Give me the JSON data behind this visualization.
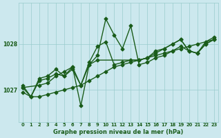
{
  "title": "Graphe pression niveau de la mer (hPa)",
  "bg_color": "#cce8ee",
  "grid_color": "#99cccc",
  "line_color": "#1a5c1a",
  "text_color": "#1a5c1a",
  "xlim": [
    -0.5,
    23.5
  ],
  "ylim": [
    1026.3,
    1028.9
  ],
  "yticks": [
    1027,
    1028
  ],
  "xticks": [
    0,
    1,
    2,
    3,
    4,
    5,
    6,
    7,
    8,
    9,
    10,
    11,
    12,
    13,
    14,
    15,
    16,
    17,
    18,
    19,
    20,
    21,
    22,
    23
  ],
  "series": [
    {
      "x": [
        0,
        1,
        2,
        3,
        4,
        5,
        6,
        7,
        8,
        9,
        10,
        11,
        12,
        13,
        14,
        15,
        16,
        17,
        18,
        19,
        20,
        21,
        22,
        23
      ],
      "y": [
        1027.1,
        1026.85,
        1027.25,
        1027.3,
        1027.45,
        1027.3,
        1027.5,
        1026.65,
        1027.55,
        1027.75,
        1028.55,
        1028.2,
        1027.9,
        1028.4,
        1027.55,
        1027.6,
        1027.7,
        1027.75,
        1027.85,
        1027.95,
        1027.85,
        1027.8,
        1028.05,
        1028.15
      ]
    },
    {
      "x": [
        0,
        1,
        2,
        3,
        4,
        5,
        6,
        7,
        8,
        9,
        10,
        11,
        12,
        13,
        14,
        15,
        16,
        17,
        18,
        19,
        20,
        21,
        22,
        23
      ],
      "y": [
        1027.05,
        1026.85,
        1027.2,
        1027.25,
        1027.35,
        1027.3,
        1027.45,
        1027.1,
        1027.6,
        1027.95,
        1028.05,
        1027.55,
        1027.6,
        1027.65,
        1027.65,
        1027.7,
        1027.85,
        1027.9,
        1028.0,
        1028.1,
        1027.85,
        1027.8,
        1028.0,
        1028.1
      ]
    },
    {
      "x": [
        0,
        1,
        2,
        3,
        4,
        5,
        6,
        7,
        8,
        9,
        10,
        11,
        12,
        13,
        14,
        15,
        16,
        17,
        18,
        19,
        20,
        21,
        22,
        23
      ],
      "y": [
        1026.95,
        1026.85,
        1026.85,
        1026.9,
        1026.95,
        1027.0,
        1027.05,
        1027.1,
        1027.2,
        1027.3,
        1027.4,
        1027.5,
        1027.55,
        1027.6,
        1027.65,
        1027.7,
        1027.75,
        1027.8,
        1027.85,
        1027.9,
        1027.95,
        1028.0,
        1028.05,
        1028.1
      ]
    },
    {
      "x": [
        0,
        2,
        3,
        4,
        5,
        6,
        7,
        8,
        9,
        14,
        15,
        16,
        17,
        18,
        19,
        20,
        21,
        22,
        23
      ],
      "y": [
        1027.05,
        1027.1,
        1027.15,
        1027.3,
        1027.4,
        1027.5,
        1027.1,
        1027.55,
        1027.65,
        1027.65,
        1027.7,
        1027.8,
        1027.9,
        1028.0,
        1028.1,
        1027.85,
        1027.8,
        1028.0,
        1028.1
      ]
    }
  ],
  "marker": "D",
  "markersize": 2.5,
  "linewidth": 1.0
}
